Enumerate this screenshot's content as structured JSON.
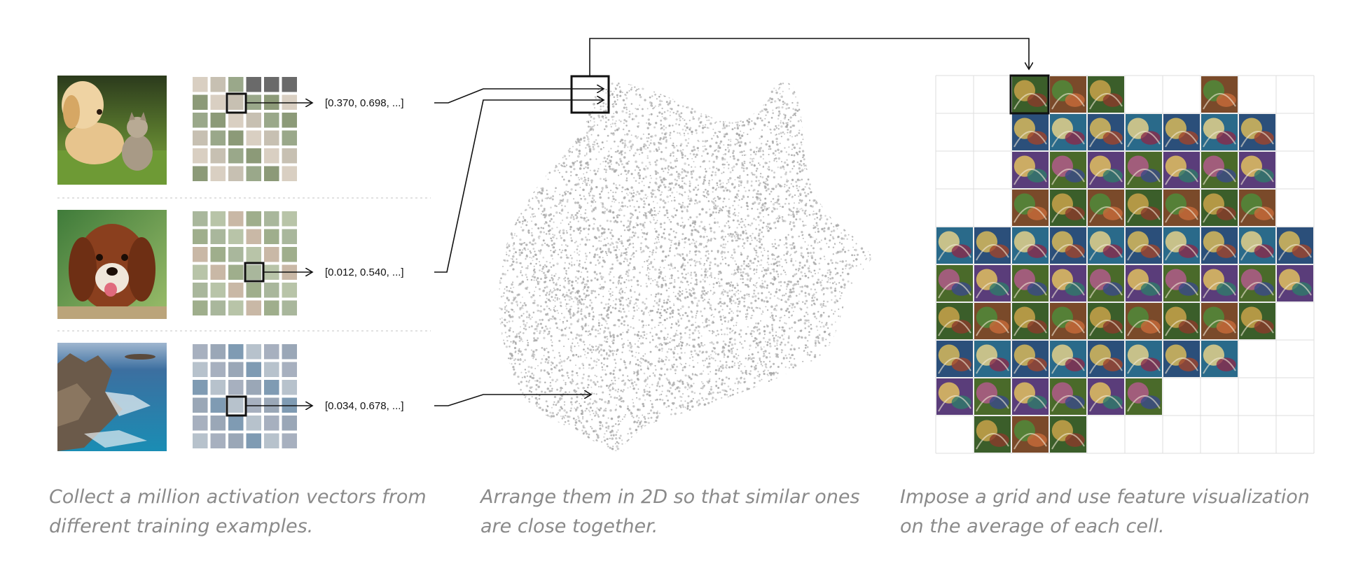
{
  "examples": [
    {
      "image": "puppy and kitten on grass",
      "vector_label": "[0.370, 0.698, ...]"
    },
    {
      "image": "fluffy brown dog with tongue out",
      "vector_label": "[0.012, 0.540, ...]"
    },
    {
      "image": "rocky ocean coastline",
      "vector_label": "[0.034, 0.678, ...]"
    }
  ],
  "captions": {
    "step1": {
      "line1": "Collect a million activation vectors from",
      "line2": "different training examples."
    },
    "step2": {
      "line1": "Arrange them in 2D so that similar ones",
      "line2": "are close together."
    },
    "step3": {
      "line1": "Impose a grid and use feature visualization",
      "line2": "on the average of each cell."
    }
  },
  "grid": {
    "rows": 10,
    "cols": 10,
    "filled": [
      [
        0,
        2
      ],
      [
        0,
        3
      ],
      [
        0,
        4
      ],
      [
        0,
        7
      ],
      [
        1,
        2
      ],
      [
        1,
        3
      ],
      [
        1,
        4
      ],
      [
        1,
        5
      ],
      [
        1,
        6
      ],
      [
        1,
        7
      ],
      [
        1,
        8
      ],
      [
        2,
        2
      ],
      [
        2,
        3
      ],
      [
        2,
        4
      ],
      [
        2,
        5
      ],
      [
        2,
        6
      ],
      [
        2,
        7
      ],
      [
        2,
        8
      ],
      [
        3,
        2
      ],
      [
        3,
        3
      ],
      [
        3,
        4
      ],
      [
        3,
        5
      ],
      [
        3,
        6
      ],
      [
        3,
        7
      ],
      [
        3,
        8
      ],
      [
        4,
        0
      ],
      [
        4,
        1
      ],
      [
        4,
        2
      ],
      [
        4,
        3
      ],
      [
        4,
        4
      ],
      [
        4,
        5
      ],
      [
        4,
        6
      ],
      [
        4,
        7
      ],
      [
        4,
        8
      ],
      [
        4,
        9
      ],
      [
        5,
        0
      ],
      [
        5,
        1
      ],
      [
        5,
        2
      ],
      [
        5,
        3
      ],
      [
        5,
        4
      ],
      [
        5,
        5
      ],
      [
        5,
        6
      ],
      [
        5,
        7
      ],
      [
        5,
        8
      ],
      [
        5,
        9
      ],
      [
        6,
        0
      ],
      [
        6,
        1
      ],
      [
        6,
        2
      ],
      [
        6,
        3
      ],
      [
        6,
        4
      ],
      [
        6,
        5
      ],
      [
        6,
        6
      ],
      [
        6,
        7
      ],
      [
        6,
        8
      ],
      [
        7,
        0
      ],
      [
        7,
        1
      ],
      [
        7,
        2
      ],
      [
        7,
        3
      ],
      [
        7,
        4
      ],
      [
        7,
        5
      ],
      [
        7,
        6
      ],
      [
        7,
        7
      ],
      [
        8,
        0
      ],
      [
        8,
        1
      ],
      [
        8,
        2
      ],
      [
        8,
        3
      ],
      [
        8,
        4
      ],
      [
        8,
        5
      ],
      [
        9,
        1
      ],
      [
        9,
        2
      ],
      [
        9,
        3
      ]
    ],
    "highlighted": [
      0,
      2
    ]
  },
  "colors": {
    "scatter": "#a9a9a9",
    "grid_line": "#dddddd",
    "caption": "#8a8a8a",
    "arrow": "#111111",
    "separator": "#cfcfcf"
  }
}
